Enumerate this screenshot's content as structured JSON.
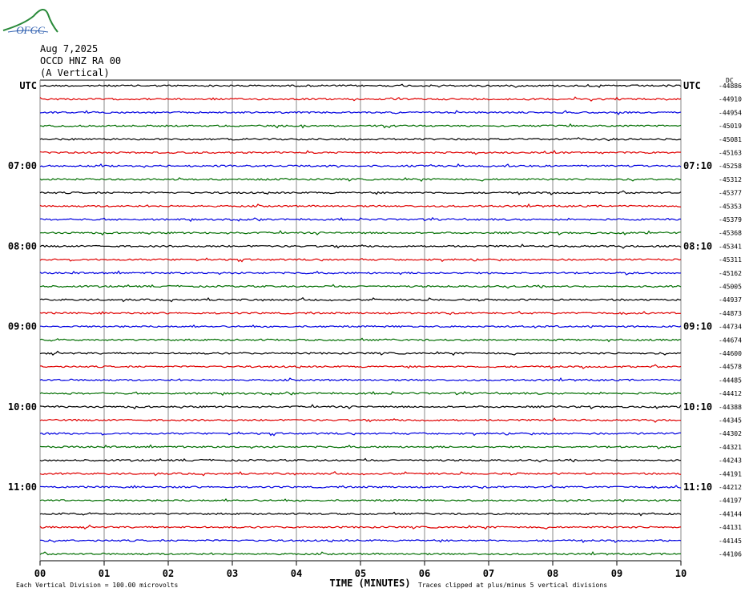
{
  "logo": "OFGC",
  "header": {
    "date": "Aug 7,2025",
    "station": "OCCD HNZ RA 00",
    "component": "(A Vertical)"
  },
  "chart_data": {
    "type": "helicorder",
    "colors": [
      "#000000",
      "#e00000",
      "#0000e0",
      "#006e00"
    ],
    "left_labels": [
      "UTC",
      null,
      null,
      null,
      null,
      null,
      "07:00",
      null,
      null,
      null,
      null,
      null,
      "08:00",
      null,
      null,
      null,
      null,
      null,
      "09:00",
      null,
      null,
      null,
      null,
      null,
      "10:00",
      null,
      null,
      null,
      null,
      null,
      "11:00",
      null,
      null,
      null,
      null,
      null
    ],
    "right_labels": [
      "UTC",
      null,
      null,
      null,
      null,
      null,
      "07:10",
      null,
      null,
      null,
      null,
      null,
      "08:10",
      null,
      null,
      null,
      null,
      null,
      "09:10",
      null,
      null,
      null,
      null,
      null,
      "10:10",
      null,
      null,
      null,
      null,
      null,
      "11:10",
      null,
      null,
      null,
      null,
      null
    ],
    "dc_header": "DC",
    "dc_offsets": [
      -44886,
      -44910,
      -44954,
      -45019,
      -45081,
      -45163,
      -45258,
      -45312,
      -45377,
      -45353,
      -45379,
      -45368,
      -45341,
      -45311,
      -45162,
      -45005,
      -44937,
      -44873,
      -44734,
      -44674,
      -44600,
      -44578,
      -44485,
      -44412,
      -44388,
      -44345,
      -44302,
      -44321,
      -44243,
      -44191,
      -44212,
      -44197,
      -44144,
      -44131,
      -44145,
      -44106
    ],
    "xlim": [
      0,
      10
    ],
    "xticks": [
      {
        "value": 0,
        "label": "00"
      },
      {
        "value": 1,
        "label": "01"
      },
      {
        "value": 2,
        "label": "02"
      },
      {
        "value": 3,
        "label": "03"
      },
      {
        "value": 4,
        "label": "04"
      },
      {
        "value": 5,
        "label": "05"
      },
      {
        "value": 6,
        "label": "06"
      },
      {
        "value": 7,
        "label": "07"
      },
      {
        "value": 8,
        "label": "08"
      },
      {
        "value": 9,
        "label": "09"
      },
      {
        "value": 10,
        "label": "10"
      }
    ],
    "xlabel": "TIME (MINUTES)",
    "footer_left": "Each Vertical Division =  100.00 microvolts",
    "footer_right": "Traces clipped at plus/minus 5 vertical divisions"
  }
}
